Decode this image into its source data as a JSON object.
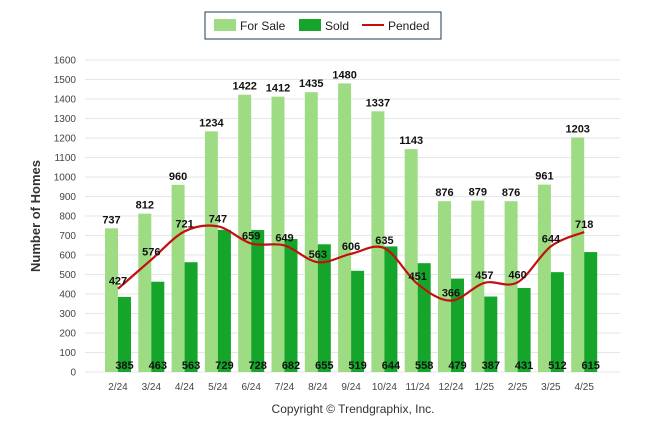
{
  "chart_data": {
    "type": "bar",
    "ylabel": "Number of Homes",
    "ylim": [
      0,
      1600
    ],
    "ytick_step": 100,
    "grid": true,
    "legend_placement": "top-center",
    "categories": [
      "2/24",
      "3/24",
      "4/24",
      "5/24",
      "6/24",
      "7/24",
      "8/24",
      "9/24",
      "10/24",
      "11/24",
      "12/24",
      "1/25",
      "2/25",
      "3/25",
      "4/25"
    ],
    "series": [
      {
        "name": "For Sale",
        "kind": "bar",
        "color": "#9edc84",
        "values": [
          737,
          812,
          960,
          1234,
          1422,
          1412,
          1435,
          1480,
          1337,
          1143,
          876,
          879,
          876,
          961,
          1203
        ]
      },
      {
        "name": "Sold",
        "kind": "bar",
        "color": "#14a52a",
        "values": [
          385,
          463,
          563,
          729,
          728,
          682,
          655,
          519,
          644,
          558,
          479,
          387,
          431,
          512,
          615
        ]
      },
      {
        "name": "Pended",
        "kind": "line",
        "color": "#c40f0f",
        "values": [
          427,
          576,
          721,
          747,
          659,
          649,
          563,
          606,
          635,
          451,
          366,
          457,
          460,
          644,
          718
        ]
      }
    ]
  },
  "footer": {
    "copyright": "Copyright © Trendgraphix, Inc."
  }
}
